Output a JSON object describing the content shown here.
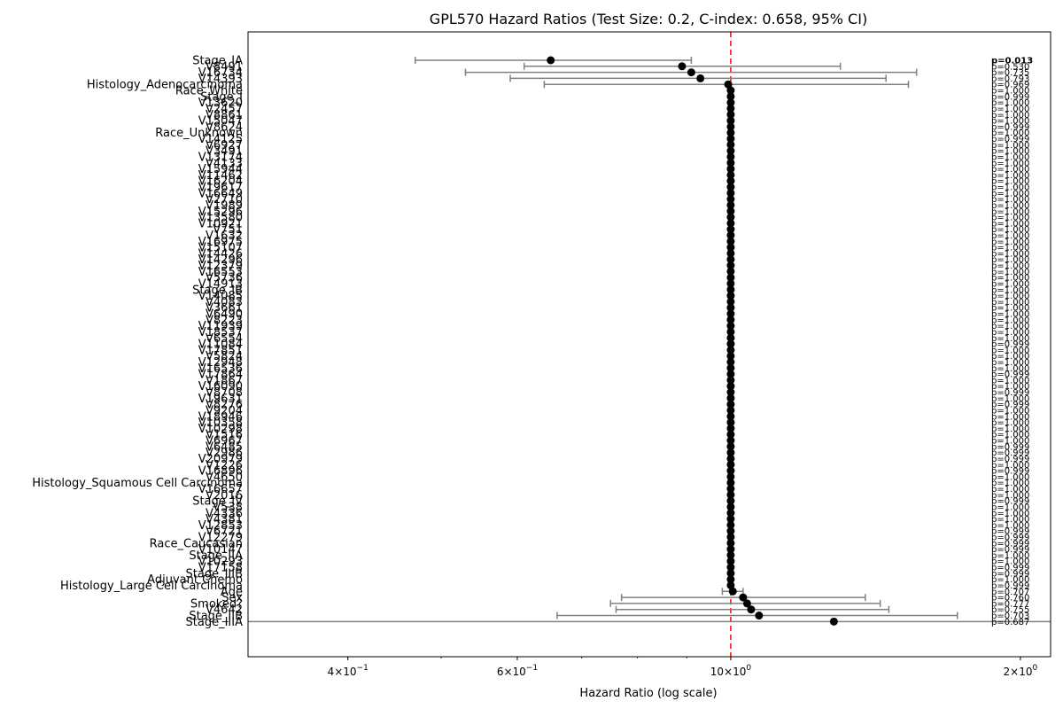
{
  "chart_data": {
    "type": "scatter",
    "title": "GPL570 Hazard Ratios (Test Size: 0.2, C-index: 0.658, 95% CI)",
    "xlabel": "Hazard Ratio (log scale)",
    "ylabel": "",
    "xscale": "log",
    "xlim": [
      0.315,
      2.15
    ],
    "x_ticks": [
      {
        "value": 0.4,
        "base": "4",
        "exp": "−1"
      },
      {
        "value": 0.6,
        "base": "6",
        "exp": "−1"
      },
      {
        "value": 1.0,
        "base": "10",
        "exp": "0"
      },
      {
        "value": 2.0,
        "base": "2",
        "exp": "0"
      }
    ],
    "reference_line": 1.0,
    "grid": false,
    "colors": {
      "point": "#000000",
      "ci": "#808080",
      "reference": "#ff0000"
    },
    "rows": [
      {
        "label": "Stage_IA",
        "hr": 0.65,
        "lo": 0.47,
        "hi": 0.91,
        "p": "p=0.013",
        "bold": true
      },
      {
        "label": "V8491",
        "hr": 0.89,
        "lo": 0.61,
        "hi": 1.3,
        "p": "p=0.530"
      },
      {
        "label": "V16734",
        "hr": 0.91,
        "lo": 0.53,
        "hi": 1.56,
        "p": "p=0.735"
      },
      {
        "label": "V14393",
        "hr": 0.93,
        "lo": 0.59,
        "hi": 1.45,
        "p": "p=0.793"
      },
      {
        "label": "Histology_Adenocarcinoma",
        "hr": 0.994,
        "lo": 0.64,
        "hi": 1.53,
        "p": "p=0.969"
      },
      {
        "label": "Race_White",
        "hr": 1.0,
        "p": "p=1.000"
      },
      {
        "label": "Stage_I",
        "hr": 1.0,
        "p": "p=0.999"
      },
      {
        "label": "V13620",
        "hr": 1.0,
        "p": "p=1.000"
      },
      {
        "label": "V2457",
        "hr": 1.0,
        "p": "p=1.000"
      },
      {
        "label": "V8861",
        "hr": 1.0,
        "p": "p=1.000"
      },
      {
        "label": "V15047",
        "hr": 1.0,
        "p": "p=1.000"
      },
      {
        "label": "V8624",
        "hr": 1.0,
        "p": "p=0.999"
      },
      {
        "label": "Race_Unknown",
        "hr": 1.0,
        "p": "p=1.000"
      },
      {
        "label": "V14125",
        "hr": 1.0,
        "p": "p=0.999"
      },
      {
        "label": "V6927",
        "hr": 1.0,
        "p": "p=1.000"
      },
      {
        "label": "V3491",
        "hr": 1.0,
        "p": "p=1.000"
      },
      {
        "label": "V13174",
        "hr": 1.0,
        "p": "p=1.000"
      },
      {
        "label": "V4133",
        "hr": 1.0,
        "p": "p=1.000"
      },
      {
        "label": "V15944",
        "hr": 1.0,
        "p": "p=1.000"
      },
      {
        "label": "V11462",
        "hr": 1.0,
        "p": "p=1.000"
      },
      {
        "label": "V16204",
        "hr": 1.0,
        "p": "p=1.000"
      },
      {
        "label": "V19617",
        "hr": 1.0,
        "p": "p=1.000"
      },
      {
        "label": "V16649",
        "hr": 1.0,
        "p": "p=1.000"
      },
      {
        "label": "V2710",
        "hr": 1.0,
        "p": "p=1.000"
      },
      {
        "label": "V1989",
        "hr": 1.0,
        "p": "p=1.000"
      },
      {
        "label": "V15296",
        "hr": 1.0,
        "p": "p=1.000"
      },
      {
        "label": "V13580",
        "hr": 1.0,
        "p": "p=1.000"
      },
      {
        "label": "V10921",
        "hr": 1.0,
        "p": "p=1.000"
      },
      {
        "label": "V751",
        "hr": 1.0,
        "p": "p=1.000"
      },
      {
        "label": "V1632",
        "hr": 1.0,
        "p": "p=1.000"
      },
      {
        "label": "V16975",
        "hr": 1.0,
        "p": "p=1.000"
      },
      {
        "label": "V15107",
        "hr": 1.0,
        "p": "p=1.000"
      },
      {
        "label": "V14426",
        "hr": 1.0,
        "p": "p=1.000"
      },
      {
        "label": "V14296",
        "hr": 1.0,
        "p": "p=1.000"
      },
      {
        "label": "V12379",
        "hr": 1.0,
        "p": "p=1.000"
      },
      {
        "label": "V16553",
        "hr": 1.0,
        "p": "p=1.000"
      },
      {
        "label": "V5736",
        "hr": 1.0,
        "p": "p=1.000"
      },
      {
        "label": "V14913",
        "hr": 1.0,
        "p": "p=1.000"
      },
      {
        "label": "Stage_IB",
        "hr": 1.0,
        "p": "p=1.000"
      },
      {
        "label": "V14085",
        "hr": 1.0,
        "p": "p=1.000"
      },
      {
        "label": "V4083",
        "hr": 1.0,
        "p": "p=1.000"
      },
      {
        "label": "V3661",
        "hr": 1.0,
        "p": "p=1.000"
      },
      {
        "label": "V6490",
        "hr": 1.0,
        "p": "p=1.000"
      },
      {
        "label": "V8223",
        "hr": 1.0,
        "p": "p=1.000"
      },
      {
        "label": "V11939",
        "hr": 1.0,
        "p": "p=1.000"
      },
      {
        "label": "V18537",
        "hr": 1.0,
        "p": "p=1.000"
      },
      {
        "label": "V6554",
        "hr": 1.0,
        "p": "p=1.000"
      },
      {
        "label": "V11084",
        "hr": 1.0,
        "p": "p=0.999"
      },
      {
        "label": "V17851",
        "hr": 1.0,
        "p": "p=1.000"
      },
      {
        "label": "V5824",
        "hr": 1.0,
        "p": "p=1.000"
      },
      {
        "label": "V12948",
        "hr": 1.0,
        "p": "p=1.000"
      },
      {
        "label": "V16536",
        "hr": 1.0,
        "p": "p=1.000"
      },
      {
        "label": "V17864",
        "hr": 1.0,
        "p": "p=0.999"
      },
      {
        "label": "V1867",
        "hr": 1.0,
        "p": "p=1.000"
      },
      {
        "label": "V16090",
        "hr": 1.0,
        "p": "p=1.000"
      },
      {
        "label": "V8708",
        "hr": 1.0,
        "p": "p=0.999"
      },
      {
        "label": "V19631",
        "hr": 1.0,
        "p": "p=1.000"
      },
      {
        "label": "V8276",
        "hr": 1.0,
        "p": "p=0.999"
      },
      {
        "label": "V9204",
        "hr": 1.0,
        "p": "p=1.000"
      },
      {
        "label": "V18946",
        "hr": 1.0,
        "p": "p=1.000"
      },
      {
        "label": "V10358",
        "hr": 1.0,
        "p": "p=1.000"
      },
      {
        "label": "V10298",
        "hr": 1.0,
        "p": "p=1.000"
      },
      {
        "label": "V1516",
        "hr": 1.0,
        "p": "p=1.000"
      },
      {
        "label": "V6967",
        "hr": 1.0,
        "p": "p=1.000"
      },
      {
        "label": "V6485",
        "hr": 1.0,
        "p": "p=0.999"
      },
      {
        "label": "V2986",
        "hr": 1.0,
        "p": "p=0.999"
      },
      {
        "label": "V20979",
        "hr": 1.0,
        "p": "p=0.999"
      },
      {
        "label": "V1226",
        "hr": 1.0,
        "p": "p=1.000"
      },
      {
        "label": "V16896",
        "hr": 1.0,
        "p": "p=0.999"
      },
      {
        "label": "V4650",
        "hr": 1.0,
        "p": "p=1.000"
      },
      {
        "label": "Histology_Squamous Cell Carcinoma",
        "hr": 1.0,
        "p": "p=1.000"
      },
      {
        "label": "V16657",
        "hr": 1.0,
        "p": "p=1.000"
      },
      {
        "label": "V2016",
        "hr": 1.0,
        "p": "p=1.000"
      },
      {
        "label": "Stage_IV",
        "hr": 1.0,
        "p": "p=0.999"
      },
      {
        "label": "V538",
        "hr": 1.0,
        "p": "p=1.000"
      },
      {
        "label": "V4336",
        "hr": 1.0,
        "p": "p=1.000"
      },
      {
        "label": "V4381",
        "hr": 1.0,
        "p": "p=1.000"
      },
      {
        "label": "V12853",
        "hr": 1.0,
        "p": "p=1.000"
      },
      {
        "label": "V6721",
        "hr": 1.0,
        "p": "p=0.999"
      },
      {
        "label": "V12279",
        "hr": 1.0,
        "p": "p=0.999"
      },
      {
        "label": "Race_Caucasian",
        "hr": 1.0,
        "p": "p=0.999"
      },
      {
        "label": "V10147",
        "hr": 1.0,
        "p": "p=0.999"
      },
      {
        "label": "Stage_IIA",
        "hr": 1.0,
        "p": "p=1.000"
      },
      {
        "label": "V10293",
        "hr": 1.0,
        "p": "p=1.000"
      },
      {
        "label": "V17158",
        "hr": 1.0,
        "p": "p=0.999"
      },
      {
        "label": "Stage_IIIB",
        "hr": 1.0,
        "p": "p=0.999"
      },
      {
        "label": "Adjuvant Chemo",
        "hr": 1.0,
        "p": "p=1.000"
      },
      {
        "label": "Histology_Large Cell Carcinoma",
        "hr": 1.0,
        "p": "p=0.999"
      },
      {
        "label": "Age",
        "hr": 1.005,
        "lo": 0.98,
        "hi": 1.03,
        "p": "p=0.707"
      },
      {
        "label": "Sex",
        "hr": 1.03,
        "lo": 0.77,
        "hi": 1.38,
        "p": "p=0.760"
      },
      {
        "label": "Smoked?",
        "hr": 1.04,
        "lo": 0.75,
        "hi": 1.43,
        "p": "p=0.777"
      },
      {
        "label": "V4642",
        "hr": 1.05,
        "lo": 0.76,
        "hi": 1.46,
        "p": "p=0.755"
      },
      {
        "label": "Stage_IIB",
        "hr": 1.07,
        "lo": 0.66,
        "hi": 1.72,
        "p": "p=0.703"
      },
      {
        "label": "Stage_IIIA",
        "hr": 1.28,
        "lo": 0.1,
        "hi": 20.0,
        "p": "p=0.687"
      }
    ]
  }
}
